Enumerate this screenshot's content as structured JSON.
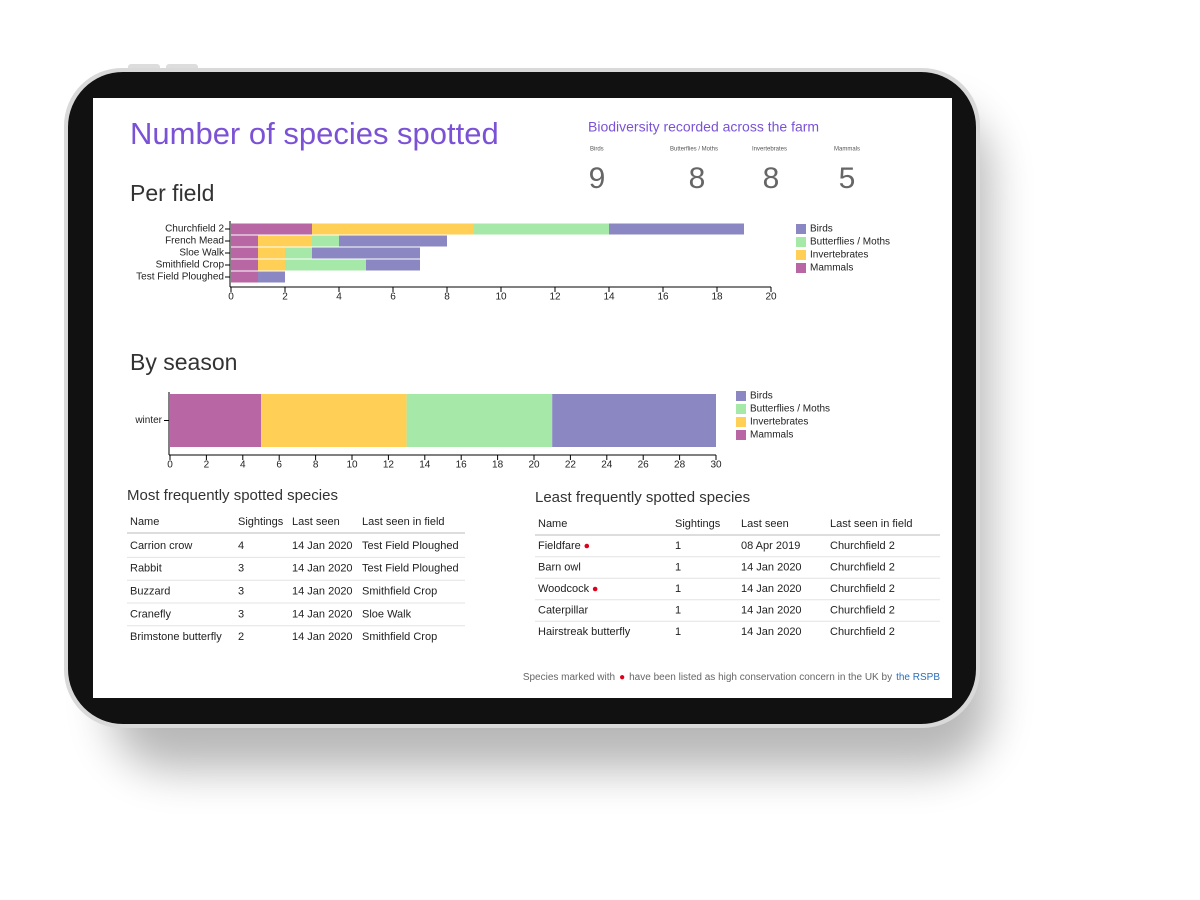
{
  "header": {
    "title": "Number of species spotted"
  },
  "summary": {
    "title": "Biodiversity recorded across the farm",
    "stats": [
      {
        "label": "Birds",
        "value": 9
      },
      {
        "label": "Butterflies / Moths",
        "value": 8
      },
      {
        "label": "Invertebrates",
        "value": 8
      },
      {
        "label": "Mammals",
        "value": 5
      }
    ]
  },
  "chart_data": [
    {
      "type": "bar",
      "orientation": "horizontal",
      "stacked": true,
      "title": "Per field",
      "categories": [
        "Churchfield 2",
        "French Mead",
        "Sloe Walk",
        "Smithfield Crop",
        "Test Field Ploughed"
      ],
      "series": [
        {
          "name": "Birds",
          "color": "#8a87c2",
          "values": [
            5,
            4,
            4,
            2,
            1
          ]
        },
        {
          "name": "Butterflies / Moths",
          "color": "#a6e8a8",
          "values": [
            5,
            1,
            1,
            3,
            0
          ]
        },
        {
          "name": "Invertebrates",
          "color": "#ffcf56",
          "values": [
            6,
            2,
            1,
            1,
            0
          ]
        },
        {
          "name": "Mammals",
          "color": "#b866a4",
          "values": [
            3,
            1,
            1,
            1,
            1
          ]
        }
      ],
      "xlim": [
        0,
        20
      ],
      "xticks": [
        0,
        2,
        4,
        6,
        8,
        10,
        12,
        14,
        16,
        18,
        20
      ],
      "legend": "right"
    },
    {
      "type": "bar",
      "orientation": "horizontal",
      "stacked": true,
      "title": "By season",
      "categories": [
        "winter"
      ],
      "series": [
        {
          "name": "Birds",
          "color": "#8a87c2",
          "values": [
            9
          ]
        },
        {
          "name": "Butterflies / Moths",
          "color": "#a6e8a8",
          "values": [
            8
          ]
        },
        {
          "name": "Invertebrates",
          "color": "#ffcf56",
          "values": [
            8
          ]
        },
        {
          "name": "Mammals",
          "color": "#b866a4",
          "values": [
            5
          ]
        }
      ],
      "xlim": [
        0,
        30
      ],
      "xticks": [
        0,
        2,
        4,
        6,
        8,
        10,
        12,
        14,
        16,
        18,
        20,
        22,
        24,
        26,
        28,
        30
      ],
      "legend": "right"
    }
  ],
  "tables": [
    {
      "title": "Most frequently spotted species",
      "columns": [
        "Name",
        "Sightings",
        "Last seen",
        "Last seen in field"
      ],
      "rows": [
        {
          "name": "Carrion crow",
          "sightings": 4,
          "last_seen": "14 Jan 2020",
          "field": "Test Field Ploughed",
          "concern": false
        },
        {
          "name": "Rabbit",
          "sightings": 3,
          "last_seen": "14 Jan 2020",
          "field": "Test Field Ploughed",
          "concern": false
        },
        {
          "name": "Buzzard",
          "sightings": 3,
          "last_seen": "14 Jan 2020",
          "field": "Smithfield Crop",
          "concern": false
        },
        {
          "name": "Cranefly",
          "sightings": 3,
          "last_seen": "14 Jan 2020",
          "field": "Sloe Walk",
          "concern": false
        },
        {
          "name": "Brimstone butterfly",
          "sightings": 2,
          "last_seen": "14 Jan 2020",
          "field": "Smithfield Crop",
          "concern": false
        }
      ]
    },
    {
      "title": "Least frequently spotted species",
      "columns": [
        "Name",
        "Sightings",
        "Last seen",
        "Last seen in field"
      ],
      "rows": [
        {
          "name": "Fieldfare",
          "sightings": 1,
          "last_seen": "08 Apr 2019",
          "field": "Churchfield 2",
          "concern": true
        },
        {
          "name": "Barn owl",
          "sightings": 1,
          "last_seen": "14 Jan 2020",
          "field": "Churchfield 2",
          "concern": false
        },
        {
          "name": "Woodcock",
          "sightings": 1,
          "last_seen": "14 Jan 2020",
          "field": "Churchfield 2",
          "concern": true
        },
        {
          "name": "Caterpillar",
          "sightings": 1,
          "last_seen": "14 Jan 2020",
          "field": "Churchfield 2",
          "concern": false
        },
        {
          "name": "Hairstreak butterfly",
          "sightings": 1,
          "last_seen": "14 Jan 2020",
          "field": "Churchfield 2",
          "concern": false
        }
      ]
    }
  ],
  "footnote": {
    "before": "Species marked with",
    "after": "have been listed as high conservation concern in the UK by",
    "link": "the RSPB"
  }
}
